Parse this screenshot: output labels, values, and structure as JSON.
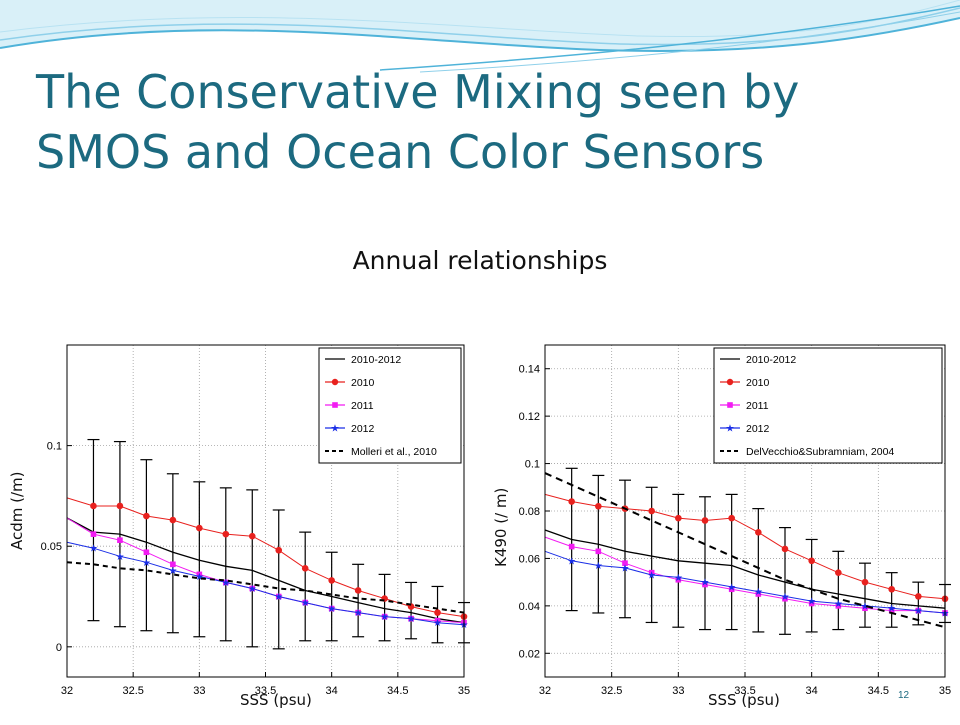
{
  "slide": {
    "title_line1": "The Conservative Mixing seen by",
    "title_line2": "SMOS and Ocean Color Sensors",
    "subtitle": "Annual relationships",
    "page_number": "12"
  },
  "colors": {
    "title": "#1c6a80",
    "wave": "#4fb3d9",
    "series_2010_2012": "#000000",
    "series_2010": "#e8211e",
    "series_2011": "#f21bf2",
    "series_2012": "#1a2ee6",
    "reference": "#000000"
  },
  "chart_data": [
    {
      "type": "line",
      "ylabel": "Acdm (/m)",
      "xlabel": "SSS (psu)",
      "xlim": [
        32,
        35
      ],
      "ylim": [
        -0.015,
        0.15
      ],
      "xticks": [
        "32",
        "32.5",
        "33",
        "33.5",
        "34",
        "34.5",
        "35"
      ],
      "yticks": [
        "0",
        "0.05",
        "0.1"
      ],
      "grid": true,
      "legend_position": "top-right",
      "x": [
        32.0,
        32.2,
        32.4,
        32.6,
        32.8,
        33.0,
        33.2,
        33.4,
        33.6,
        33.8,
        34.0,
        34.2,
        34.4,
        34.6,
        34.8,
        35.0
      ],
      "series": [
        {
          "name": "2010-2012",
          "style": "solid",
          "marker": "none",
          "values": [
            0.064,
            0.057,
            0.056,
            0.052,
            0.047,
            0.043,
            0.04,
            0.038,
            0.033,
            0.028,
            0.025,
            0.022,
            0.019,
            0.017,
            0.014,
            0.012
          ]
        },
        {
          "name": "2010",
          "style": "solid",
          "marker": "circle",
          "values": [
            0.074,
            0.07,
            0.07,
            0.065,
            0.063,
            0.059,
            0.056,
            0.055,
            0.048,
            0.039,
            0.033,
            0.028,
            0.024,
            0.02,
            0.017,
            0.015
          ]
        },
        {
          "name": "2011",
          "style": "solid",
          "marker": "square",
          "values": [
            0.064,
            0.056,
            0.053,
            0.047,
            0.041,
            0.036,
            0.032,
            0.029,
            0.025,
            0.022,
            0.019,
            0.017,
            0.015,
            0.014,
            0.013,
            0.012
          ]
        },
        {
          "name": "2012",
          "style": "solid",
          "marker": "star",
          "values": [
            0.052,
            0.049,
            0.045,
            0.042,
            0.038,
            0.035,
            0.032,
            0.029,
            0.025,
            0.022,
            0.019,
            0.017,
            0.015,
            0.014,
            0.012,
            0.011
          ]
        },
        {
          "name": "Molleri et al., 2010",
          "style": "dashed",
          "marker": "none",
          "values": [
            0.042,
            0.041,
            0.039,
            0.038,
            0.036,
            0.034,
            0.033,
            0.031,
            0.029,
            0.028,
            0.026,
            0.024,
            0.023,
            0.021,
            0.019,
            0.017
          ]
        }
      ],
      "error_bars": {
        "x": [
          32.2,
          32.4,
          32.6,
          32.8,
          33.0,
          33.2,
          33.4,
          33.6,
          33.8,
          34.0,
          34.2,
          34.4,
          34.6,
          34.8,
          35.0
        ],
        "low": [
          0.013,
          0.01,
          0.008,
          0.007,
          0.005,
          0.003,
          0.0,
          -0.001,
          0.003,
          0.003,
          0.005,
          0.003,
          0.004,
          0.002,
          0.002
        ],
        "high": [
          0.103,
          0.102,
          0.093,
          0.086,
          0.082,
          0.079,
          0.078,
          0.068,
          0.057,
          0.047,
          0.041,
          0.036,
          0.032,
          0.03,
          0.022
        ]
      }
    },
    {
      "type": "line",
      "ylabel": "K490 (/ m)",
      "xlabel": "SSS (psu)",
      "xlim": [
        32,
        35
      ],
      "ylim": [
        0.01,
        0.15
      ],
      "xticks": [
        "32",
        "32.5",
        "33",
        "33.5",
        "34",
        "34.5",
        "35"
      ],
      "yticks": [
        "0.02",
        "0.04",
        "0.06",
        "0.08",
        "0.1",
        "0.12",
        "0.14"
      ],
      "grid": true,
      "legend_position": "top-right",
      "x": [
        32.0,
        32.2,
        32.4,
        32.6,
        32.8,
        33.0,
        33.2,
        33.4,
        33.6,
        33.8,
        34.0,
        34.2,
        34.4,
        34.6,
        34.8,
        35.0
      ],
      "series": [
        {
          "name": "2010-2012",
          "style": "solid",
          "marker": "none",
          "values": [
            0.072,
            0.068,
            0.066,
            0.063,
            0.061,
            0.059,
            0.058,
            0.057,
            0.053,
            0.05,
            0.047,
            0.045,
            0.043,
            0.041,
            0.04,
            0.039
          ]
        },
        {
          "name": "2010",
          "style": "solid",
          "marker": "circle",
          "values": [
            0.087,
            0.084,
            0.082,
            0.081,
            0.08,
            0.077,
            0.076,
            0.077,
            0.071,
            0.064,
            0.059,
            0.054,
            0.05,
            0.047,
            0.044,
            0.043
          ]
        },
        {
          "name": "2011",
          "style": "solid",
          "marker": "square",
          "values": [
            0.069,
            0.065,
            0.063,
            0.058,
            0.054,
            0.051,
            0.049,
            0.047,
            0.045,
            0.043,
            0.041,
            0.04,
            0.039,
            0.038,
            0.038,
            0.037
          ]
        },
        {
          "name": "2012",
          "style": "solid",
          "marker": "star",
          "values": [
            0.063,
            0.059,
            0.057,
            0.056,
            0.053,
            0.052,
            0.05,
            0.048,
            0.046,
            0.044,
            0.042,
            0.041,
            0.04,
            0.039,
            0.038,
            0.037
          ]
        },
        {
          "name": "DelVecchio&Subramniam, 2004",
          "style": "dashed",
          "marker": "none",
          "values": [
            0.096,
            0.091,
            0.086,
            0.081,
            0.076,
            0.071,
            0.066,
            0.061,
            0.056,
            0.051,
            0.047,
            0.043,
            0.04,
            0.037,
            0.034,
            0.031
          ]
        }
      ],
      "error_bars": {
        "x": [
          32.2,
          32.4,
          32.6,
          32.8,
          33.0,
          33.2,
          33.4,
          33.6,
          33.8,
          34.0,
          34.2,
          34.4,
          34.6,
          34.8,
          35.0
        ],
        "low": [
          0.038,
          0.037,
          0.035,
          0.033,
          0.031,
          0.03,
          0.03,
          0.029,
          0.028,
          0.029,
          0.03,
          0.031,
          0.031,
          0.032,
          0.033
        ],
        "high": [
          0.098,
          0.095,
          0.093,
          0.09,
          0.087,
          0.086,
          0.087,
          0.081,
          0.073,
          0.068,
          0.063,
          0.058,
          0.054,
          0.05,
          0.049
        ]
      }
    }
  ]
}
